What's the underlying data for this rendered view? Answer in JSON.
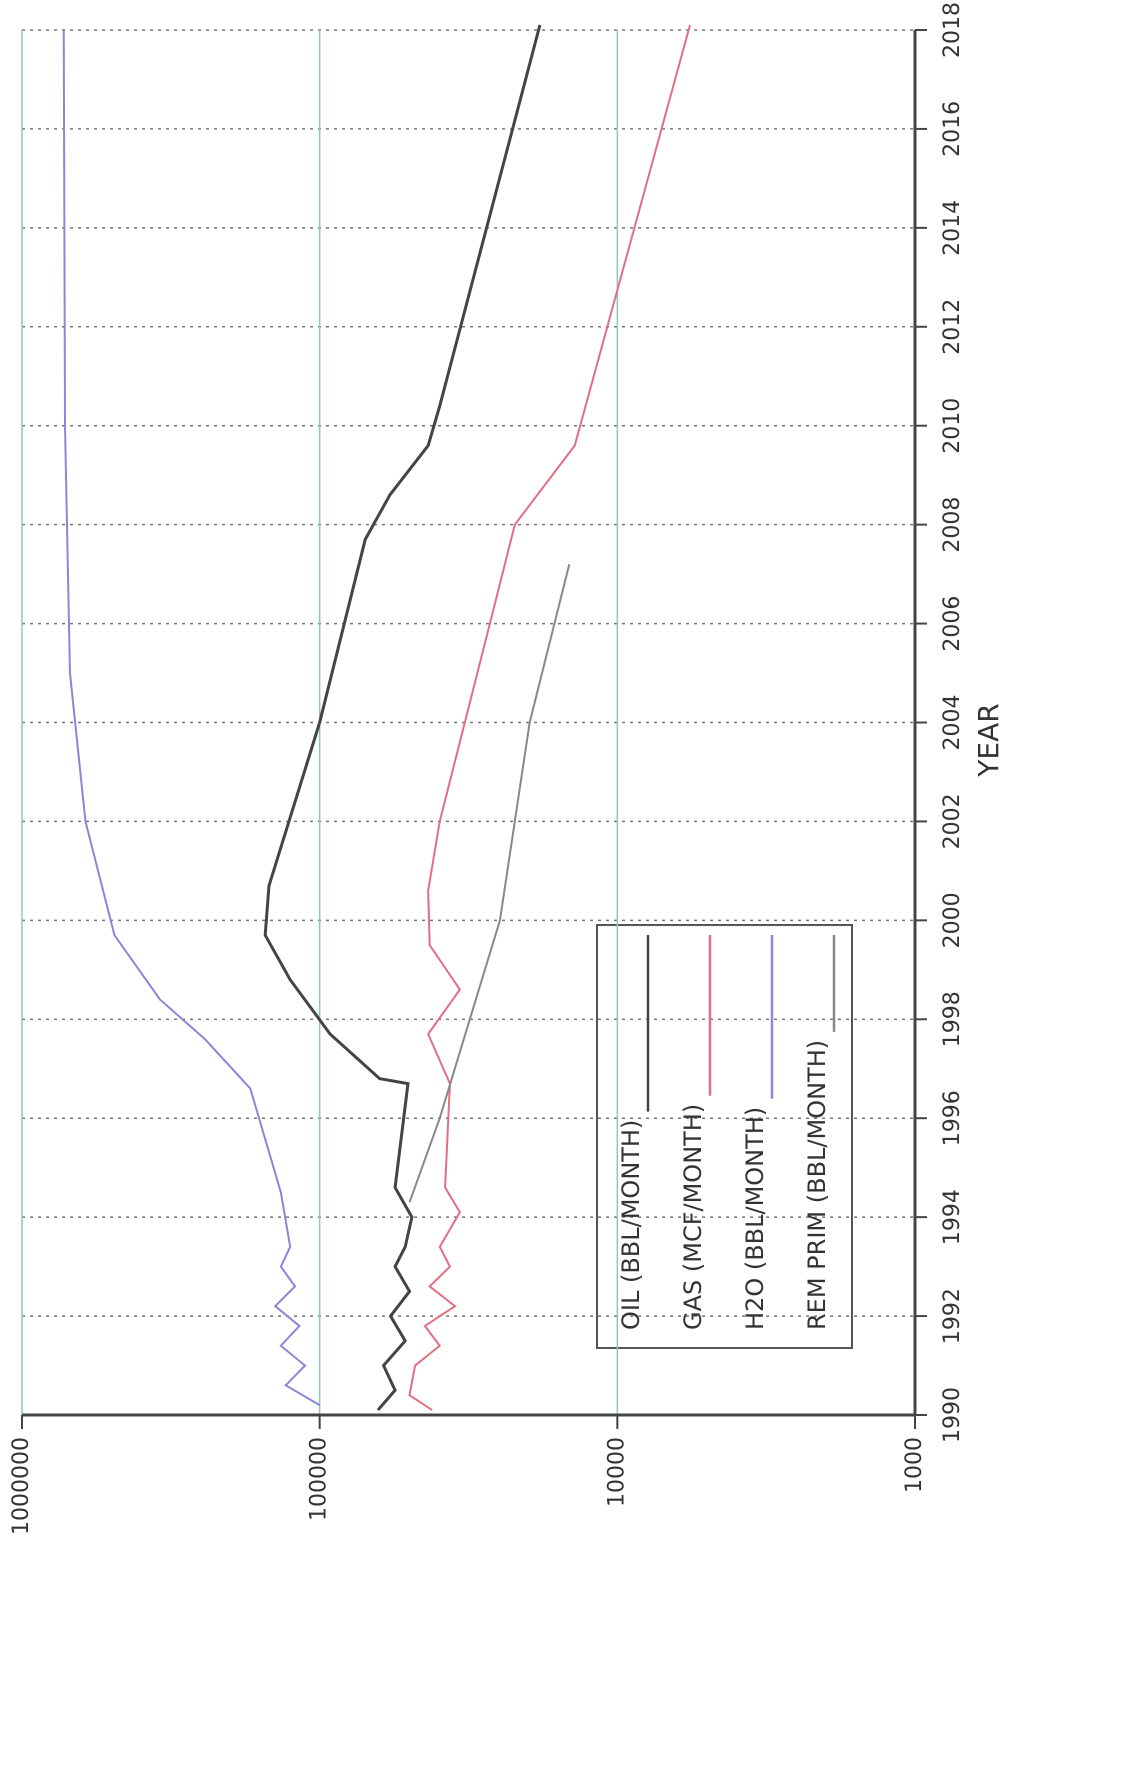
{
  "chart_data": {
    "type": "line",
    "x_label": "YEAR",
    "xlim": [
      1990,
      2018
    ],
    "xticks": [
      1990,
      1992,
      1994,
      1996,
      1998,
      2000,
      2002,
      2004,
      2006,
      2008,
      2010,
      2012,
      2014,
      2016,
      2018
    ],
    "ylim": [
      1000,
      1000000
    ],
    "yticks": [
      1000,
      10000,
      100000,
      1000000
    ],
    "log_y": true,
    "grid": true,
    "series": [
      {
        "name": "OIL (BBL/MONTH)",
        "color": "#444444",
        "x": [
          1990.1,
          1990.5,
          1991,
          1991.5,
          1992,
          1992.5,
          1993,
          1993.4,
          1994,
          1994.6,
          1996.7,
          1996.8,
          1997.7,
          1998.8,
          1999.7,
          2000.7,
          2004,
          2007.7,
          2008.6,
          2009.6,
          2010.4,
          2018.1
        ],
        "values": [
          63700,
          55800,
          61000,
          51600,
          57800,
          49900,
          55800,
          51600,
          49000,
          55800,
          50500,
          62900,
          92200,
          125600,
          152400,
          148000,
          100000,
          70300,
          58100,
          43200,
          39500,
          18200
        ]
      },
      {
        "name": "GAS (MCF/MONTH)",
        "color": "#e07080",
        "x": [
          1990.1,
          1990.4,
          1991,
          1991.4,
          1991.8,
          1992.2,
          1992.6,
          1993,
          1993.4,
          1994.1,
          1994.6,
          1996.7,
          1997.7,
          1998.6,
          1999.5,
          2000.6,
          2002,
          2006,
          2008,
          2009.6,
          2018.1
        ],
        "values": [
          41900,
          49900,
          47800,
          39500,
          44300,
          35100,
          42700,
          36500,
          39500,
          33800,
          37900,
          36500,
          43200,
          33800,
          42700,
          43200,
          39500,
          26800,
          22100,
          13900,
          5700
        ]
      },
      {
        "name": "H2O (BBL/MONTH)",
        "color": "#8a86d8",
        "x": [
          1990.2,
          1990.6,
          1991,
          1991.4,
          1991.8,
          1992.2,
          1992.6,
          1993,
          1993.4,
          1994.5,
          1996.6,
          1997.6,
          1998.4,
          1999.7,
          2002,
          2005,
          2010,
          2018
        ],
        "values": [
          100000,
          130000,
          112000,
          135000,
          117000,
          141000,
          121000,
          135000,
          125600,
          135000,
          171000,
          243000,
          344000,
          489000,
          612000,
          690000,
          717000,
          724000
        ]
      },
      {
        "name": "REM PRIM (BBL/MONTH)",
        "color": "#888888",
        "x": [
          1994.3,
          1996,
          2000,
          2004,
          2007.2
        ],
        "values": [
          49900,
          39500,
          24800,
          19700,
          14500
        ]
      }
    ]
  }
}
